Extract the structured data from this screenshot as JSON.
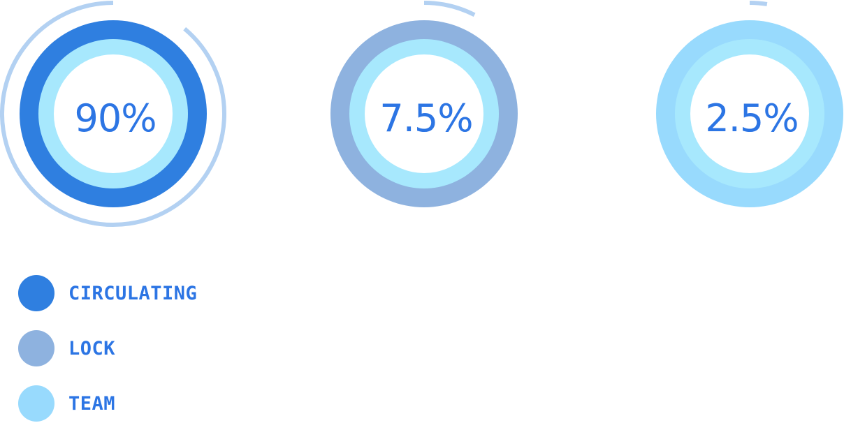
{
  "chart_data": {
    "type": "pie",
    "categories": [
      "CIRCULATING",
      "LOCK",
      "TEAM"
    ],
    "values": [
      90,
      7.5,
      2.5
    ],
    "labels": [
      "90%",
      "7.5%",
      "2.5%"
    ],
    "legend_position": "bottom-left"
  },
  "colors": {
    "circulating": "#2f7fe0",
    "lock": "#8eb2df",
    "team": "#98dafd",
    "inner_ring": "#a7e8fd",
    "arc": "#b3d1f2",
    "text": "#2c75e4"
  },
  "legend": {
    "items": [
      {
        "label": "CIRCULATING",
        "color": "#2f7fe0"
      },
      {
        "label": "LOCK",
        "color": "#8eb2df"
      },
      {
        "label": "TEAM",
        "color": "#98dafd"
      }
    ]
  }
}
